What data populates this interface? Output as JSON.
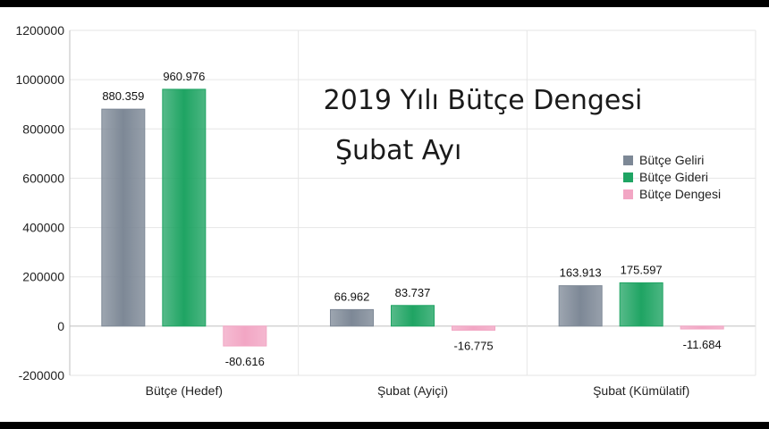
{
  "chart_data": {
    "type": "bar",
    "title": "2019 Yılı Bütçe Dengesi",
    "subtitle": "Şubat Ayı",
    "categories": [
      "Bütçe (Hedef)",
      "Şubat (Ayiçi)",
      "Şubat (Kümülatif)"
    ],
    "series": [
      {
        "name": "Bütçe Geliri",
        "values": [
          880359,
          66962,
          163913
        ],
        "labels": [
          "880.359",
          "66.962",
          "163.913"
        ],
        "color": "#7d8896"
      },
      {
        "name": "Bütçe Gideri",
        "values": [
          960976,
          83737,
          175597
        ],
        "labels": [
          "960.976",
          "83.737",
          "175.597"
        ],
        "color": "#1fa463"
      },
      {
        "name": "Bütçe Dengesi",
        "values": [
          -80616,
          -16775,
          -11684
        ],
        "labels": [
          "-80.616",
          "-16.775",
          "-11.684"
        ],
        "color": "#f2a6c4"
      }
    ],
    "ylim": [
      -200000,
      1200000
    ],
    "yticks": [
      -200000,
      0,
      200000,
      400000,
      600000,
      800000,
      1000000,
      1200000
    ],
    "xlabel": "",
    "ylabel": "",
    "grid": true,
    "legend_position": "right"
  }
}
